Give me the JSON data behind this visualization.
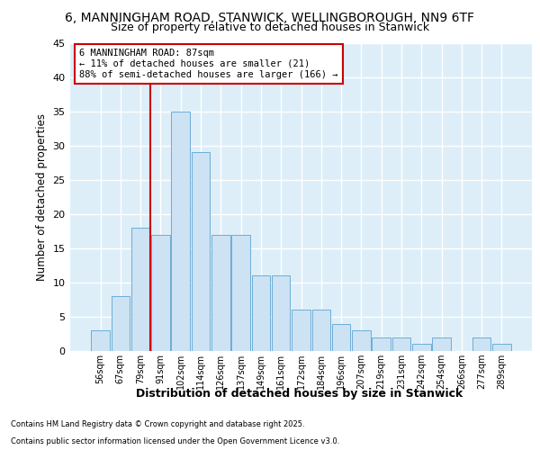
{
  "title1": "6, MANNINGHAM ROAD, STANWICK, WELLINGBOROUGH, NN9 6TF",
  "title2": "Size of property relative to detached houses in Stanwick",
  "xlabel": "Distribution of detached houses by size in Stanwick",
  "ylabel": "Number of detached properties",
  "categories": [
    "56sqm",
    "67sqm",
    "79sqm",
    "91sqm",
    "102sqm",
    "114sqm",
    "126sqm",
    "137sqm",
    "149sqm",
    "161sqm",
    "172sqm",
    "184sqm",
    "196sqm",
    "207sqm",
    "219sqm",
    "231sqm",
    "242sqm",
    "254sqm",
    "266sqm",
    "277sqm",
    "289sqm"
  ],
  "values": [
    3,
    8,
    18,
    17,
    35,
    29,
    17,
    17,
    11,
    11,
    6,
    6,
    4,
    3,
    2,
    2,
    1,
    2,
    0,
    2,
    1
  ],
  "bar_color": "#cde2f3",
  "bar_edge_color": "#6baed6",
  "vline_x": 2.5,
  "vline_color": "#cc0000",
  "ylim": [
    0,
    45
  ],
  "yticks": [
    0,
    5,
    10,
    15,
    20,
    25,
    30,
    35,
    40,
    45
  ],
  "annotation_title": "6 MANNINGHAM ROAD: 87sqm",
  "annotation_line1": "← 11% of detached houses are smaller (21)",
  "annotation_line2": "88% of semi-detached houses are larger (166) →",
  "annotation_box_facecolor": "#ffffff",
  "annotation_box_edgecolor": "#cc0000",
  "footer1": "Contains HM Land Registry data © Crown copyright and database right 2025.",
  "footer2": "Contains public sector information licensed under the Open Government Licence v3.0.",
  "fig_bg_color": "#ffffff",
  "plot_bg_color": "#ddeef8",
  "grid_color": "#ffffff"
}
